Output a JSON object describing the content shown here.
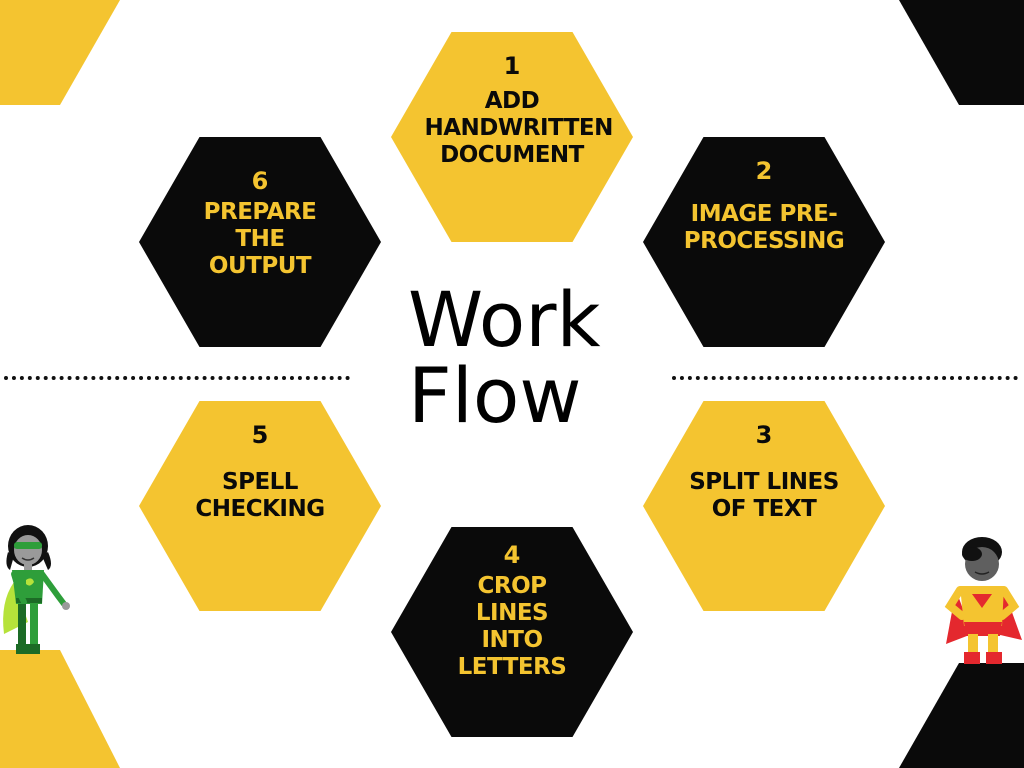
{
  "title": [
    "Work",
    "Flow"
  ],
  "steps": [
    {
      "num": "1",
      "label": "ADD HANDWRITTEN DOCUMENT"
    },
    {
      "num": "2",
      "label": "IMAGE PRE-PROCESSING"
    },
    {
      "num": "3",
      "label": "SPLIT LINES OF TEXT"
    },
    {
      "num": "4",
      "label": "CROP LINES INTO LETTERS"
    },
    {
      "num": "5",
      "label": "SPELL CHECKING"
    },
    {
      "num": "6",
      "label": "PREPARE THE OUTPUT"
    }
  ],
  "colors": {
    "yellow": "#f4c430",
    "black": "#0a0a0a"
  },
  "icons": [
    "green-superhero-woman-icon",
    "yellow-superhero-man-icon"
  ]
}
